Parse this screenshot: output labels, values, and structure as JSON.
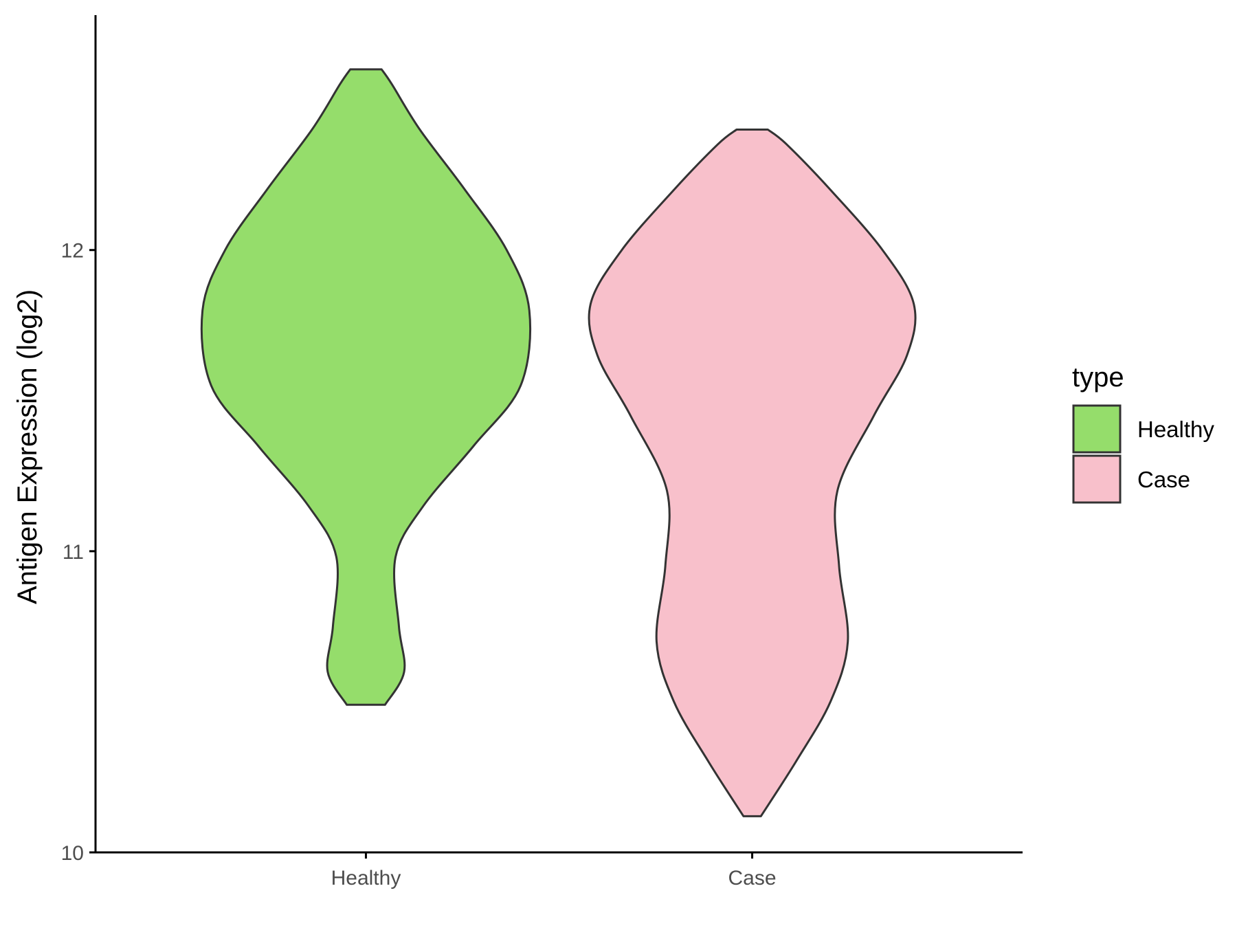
{
  "chart_data": {
    "type": "violin",
    "ylabel": "Antigen Expression (log2)",
    "xlabel": "",
    "ylim": [
      10,
      12.78
    ],
    "yticks": [
      10,
      11,
      12
    ],
    "categories": [
      "Healthy",
      "Case"
    ],
    "grid": false,
    "legend": {
      "title": "type",
      "position": "right",
      "entries": [
        {
          "label": "Healthy",
          "color": "#95dd6b"
        },
        {
          "label": "Case",
          "color": "#f8c0cb"
        }
      ]
    },
    "series": [
      {
        "category": "Healthy",
        "color": "#95dd6b",
        "min": 10.49,
        "max": 12.6,
        "density": [
          [
            10.49,
            0.11
          ],
          [
            10.6,
            0.22
          ],
          [
            10.75,
            0.19
          ],
          [
            10.98,
            0.17
          ],
          [
            11.15,
            0.33
          ],
          [
            11.35,
            0.62
          ],
          [
            11.55,
            0.89
          ],
          [
            11.8,
            0.94
          ],
          [
            12.0,
            0.81
          ],
          [
            12.2,
            0.57
          ],
          [
            12.4,
            0.31
          ],
          [
            12.55,
            0.15
          ],
          [
            12.6,
            0.09
          ]
        ]
      },
      {
        "category": "Case",
        "color": "#f8c0cb",
        "min": 10.12,
        "max": 12.4,
        "density": [
          [
            10.12,
            0.05
          ],
          [
            10.3,
            0.25
          ],
          [
            10.5,
            0.45
          ],
          [
            10.7,
            0.55
          ],
          [
            10.95,
            0.5
          ],
          [
            11.2,
            0.49
          ],
          [
            11.45,
            0.7
          ],
          [
            11.65,
            0.89
          ],
          [
            11.82,
            0.93
          ],
          [
            12.0,
            0.75
          ],
          [
            12.2,
            0.45
          ],
          [
            12.35,
            0.2
          ],
          [
            12.4,
            0.09
          ]
        ]
      }
    ]
  }
}
